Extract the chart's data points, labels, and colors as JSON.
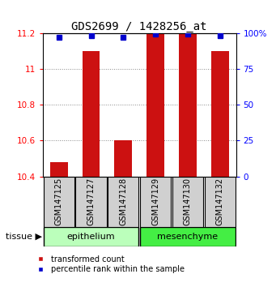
{
  "title": "GDS2699 / 1428256_at",
  "samples": [
    "GSM147125",
    "GSM147127",
    "GSM147128",
    "GSM147129",
    "GSM147130",
    "GSM147132"
  ],
  "bar_bottoms": [
    10.4,
    10.4,
    10.4,
    10.4,
    10.4,
    10.4
  ],
  "bar_tops": [
    10.48,
    11.1,
    10.6,
    11.2,
    11.2,
    11.1
  ],
  "percentile_ranks": [
    97,
    98,
    97,
    99,
    99,
    98
  ],
  "ylim": [
    10.4,
    11.2
  ],
  "yticks": [
    10.4,
    10.6,
    10.8,
    11.0,
    11.2
  ],
  "ytick_labels": [
    "10.4",
    "10.6",
    "10.8",
    "11",
    "11.2"
  ],
  "right_yticks": [
    0,
    25,
    50,
    75,
    100
  ],
  "right_ytick_labels": [
    "0",
    "25",
    "50",
    "75",
    "100%"
  ],
  "bar_color": "#cc1111",
  "dot_color": "#0000cc",
  "epi_color": "#bbffbb",
  "meso_color": "#44ee44",
  "bg_color": "#ffffff",
  "grid_color": "#888888",
  "right_axis_color": "blue",
  "left_axis_color": "red",
  "sample_box_color": "#d0d0d0",
  "group_border_color": "#000000",
  "bar_width": 0.55,
  "dot_size": 5,
  "title_fontsize": 10,
  "tick_fontsize": 7.5,
  "sample_fontsize": 7,
  "group_fontsize": 8,
  "legend_fontsize": 7
}
